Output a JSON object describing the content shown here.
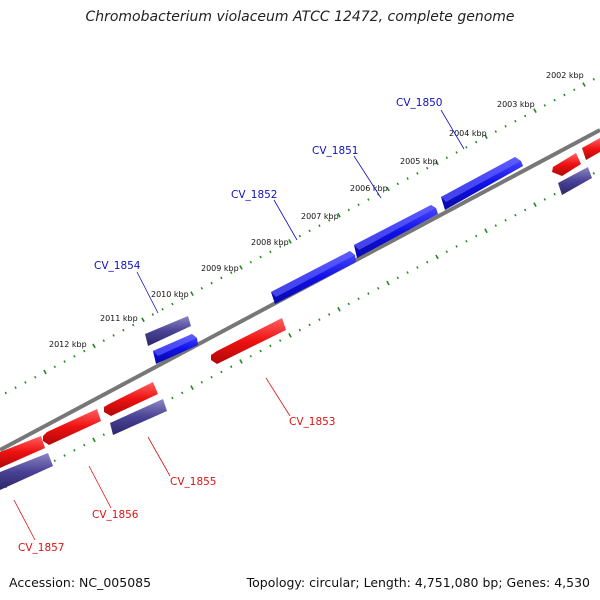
{
  "title": "Chromobacterium violaceum ATCC 12472, complete genome",
  "footer": {
    "accession": "Accession: NC_005085",
    "summary": "Topology: circular; Length: 4,751,080 bp; Genes: 4,530"
  },
  "colors": {
    "forward_gene": "#1010e8",
    "reverse_gene": "#ee1111",
    "other_gene": "#4a4294",
    "backbone": "#777777",
    "tick": "#1f8a1f",
    "forward_label": "#1010c0",
    "reverse_label": "#dd1111"
  },
  "ticks": {
    "labels": [
      "2012 kbp",
      "2011 kbp",
      "2010 kbp",
      "2009 kbp",
      "2008 kbp",
      "2007 kbp",
      "2006 kbp",
      "2005 kbp",
      "2004 kbp",
      "2003 kbp",
      "2002 kbp"
    ]
  },
  "genes": {
    "forward_labels": [
      {
        "id": "CV_1850",
        "label": "CV_1850"
      },
      {
        "id": "CV_1851",
        "label": "CV_1851"
      },
      {
        "id": "CV_1852",
        "label": "CV_1852"
      },
      {
        "id": "CV_1854",
        "label": "CV_1854"
      }
    ],
    "reverse_labels": [
      {
        "id": "CV_1853",
        "label": "CV_1853"
      },
      {
        "id": "CV_1855",
        "label": "CV_1855"
      },
      {
        "id": "CV_1856",
        "label": "CV_1856"
      },
      {
        "id": "CV_1857",
        "label": "CV_1857"
      }
    ]
  }
}
